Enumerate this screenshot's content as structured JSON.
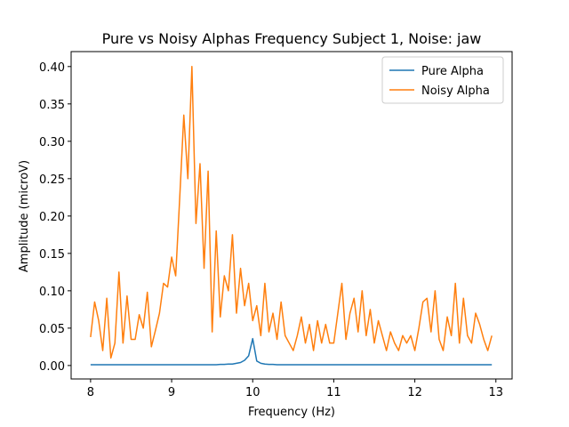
{
  "chart_data": {
    "type": "line",
    "title": "Pure vs Noisy Alphas Frequency Subject 1, Noise: jaw",
    "x_label": "Frequency (Hz)",
    "y_label": "Amplitude (microV)",
    "x": [
      8,
      8.05,
      8.1,
      8.15,
      8.2,
      8.25,
      8.3,
      8.35,
      8.4,
      8.45,
      8.5,
      8.55,
      8.6,
      8.65,
      8.7,
      8.75,
      8.8,
      8.85,
      8.9,
      8.95,
      9,
      9.05,
      9.1,
      9.15,
      9.2,
      9.25,
      9.3,
      9.35,
      9.4,
      9.45,
      9.5,
      9.55,
      9.6,
      9.65,
      9.7,
      9.75,
      9.8,
      9.85,
      9.9,
      9.95,
      10,
      10.05,
      10.1,
      10.15,
      10.2,
      10.25,
      10.3,
      10.35,
      10.4,
      10.45,
      10.5,
      10.55,
      10.6,
      10.65,
      10.7,
      10.75,
      10.8,
      10.85,
      10.9,
      10.95,
      11,
      11.05,
      11.1,
      11.15,
      11.2,
      11.25,
      11.3,
      11.35,
      11.4,
      11.45,
      11.5,
      11.55,
      11.6,
      11.65,
      11.7,
      11.75,
      11.8,
      11.85,
      11.9,
      11.95,
      12,
      12.05,
      12.1,
      12.15,
      12.2,
      12.25,
      12.3,
      12.35,
      12.4,
      12.45,
      12.5,
      12.55,
      12.6,
      12.65,
      12.7,
      12.75,
      12.8,
      12.85,
      12.9,
      12.95
    ],
    "series": [
      {
        "name": "Pure Alpha",
        "color": "#1f77b4",
        "values": [
          0.001,
          0.001,
          0.001,
          0.001,
          0.001,
          0.001,
          0.001,
          0.001,
          0.001,
          0.001,
          0.001,
          0.001,
          0.001,
          0.001,
          0.001,
          0.001,
          0.001,
          0.001,
          0.001,
          0.001,
          0.001,
          0.001,
          0.001,
          0.001,
          0.001,
          0.001,
          0.001,
          0.001,
          0.001,
          0.001,
          0.001,
          0.001,
          0.0015,
          0.0015,
          0.002,
          0.002,
          0.003,
          0.004,
          0.007,
          0.013,
          0.036,
          0.006,
          0.003,
          0.002,
          0.0015,
          0.0015,
          0.001,
          0.001,
          0.001,
          0.001,
          0.001,
          0.001,
          0.001,
          0.001,
          0.001,
          0.001,
          0.001,
          0.001,
          0.001,
          0.001,
          0.001,
          0.001,
          0.001,
          0.001,
          0.001,
          0.001,
          0.001,
          0.001,
          0.001,
          0.001,
          0.001,
          0.001,
          0.001,
          0.001,
          0.001,
          0.001,
          0.001,
          0.001,
          0.001,
          0.001,
          0.001,
          0.001,
          0.001,
          0.001,
          0.001,
          0.001,
          0.001,
          0.001,
          0.001,
          0.001,
          0.001,
          0.001,
          0.001,
          0.001,
          0.001,
          0.001,
          0.001,
          0.001,
          0.001,
          0.001
        ]
      },
      {
        "name": "Noisy Alpha",
        "color": "#ff7f0e",
        "values": [
          0.038,
          0.085,
          0.06,
          0.02,
          0.09,
          0.01,
          0.03,
          0.125,
          0.03,
          0.093,
          0.035,
          0.035,
          0.068,
          0.05,
          0.098,
          0.025,
          0.047,
          0.07,
          0.11,
          0.105,
          0.145,
          0.12,
          0.225,
          0.335,
          0.25,
          0.4,
          0.19,
          0.27,
          0.13,
          0.26,
          0.045,
          0.18,
          0.065,
          0.12,
          0.1,
          0.175,
          0.07,
          0.13,
          0.08,
          0.11,
          0.06,
          0.08,
          0.04,
          0.11,
          0.045,
          0.07,
          0.035,
          0.085,
          0.04,
          0.03,
          0.02,
          0.04,
          0.065,
          0.03,
          0.055,
          0.02,
          0.06,
          0.03,
          0.055,
          0.03,
          0.03,
          0.07,
          0.11,
          0.035,
          0.07,
          0.09,
          0.045,
          0.1,
          0.04,
          0.075,
          0.03,
          0.06,
          0.04,
          0.02,
          0.045,
          0.03,
          0.02,
          0.04,
          0.03,
          0.04,
          0.02,
          0.05,
          0.085,
          0.09,
          0.045,
          0.1,
          0.035,
          0.02,
          0.065,
          0.04,
          0.11,
          0.03,
          0.09,
          0.04,
          0.03,
          0.07,
          0.055,
          0.035,
          0.02,
          0.04
        ]
      }
    ],
    "xlim": [
      7.76,
      13.2
    ],
    "ylim": [
      -0.018,
      0.42
    ],
    "xticks": [
      8,
      9,
      10,
      11,
      12,
      13
    ],
    "yticks": [
      {
        "value": 0,
        "label": "0.00"
      },
      {
        "value": 0.05,
        "label": "0.05"
      },
      {
        "value": 0.1,
        "label": "0.10"
      },
      {
        "value": 0.15,
        "label": "0.15"
      },
      {
        "value": 0.2,
        "label": "0.20"
      },
      {
        "value": 0.25,
        "label": "0.25"
      },
      {
        "value": 0.3,
        "label": "0.30"
      },
      {
        "value": 0.35,
        "label": "0.35"
      },
      {
        "value": 0.4,
        "label": "0.40"
      }
    ],
    "legend": "upper right",
    "grid": false
  }
}
